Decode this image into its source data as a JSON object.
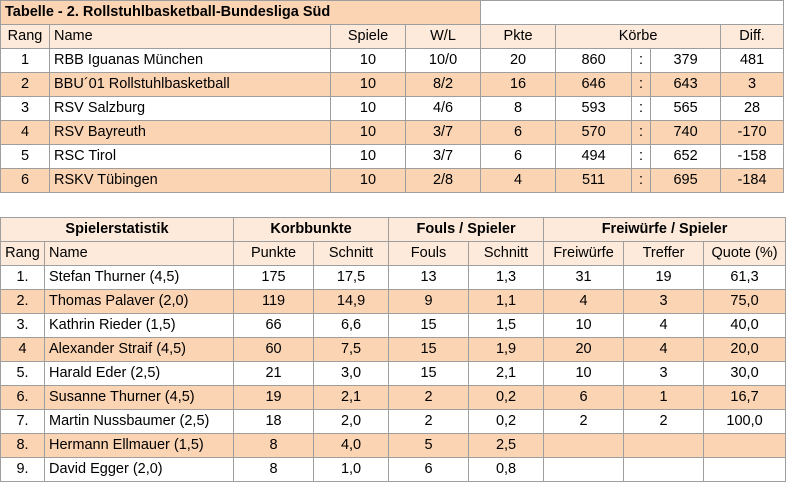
{
  "league_table": {
    "title": "Tabelle - 2. Rollstuhlbasketball-Bundesliga Süd",
    "headers": {
      "rang": "Rang",
      "name": "Name",
      "spiele": "Spiele",
      "wl": "W/L",
      "pkte": "Pkte",
      "koerbe": "Körbe",
      "diff": "Diff."
    },
    "separator": ":",
    "rows": [
      {
        "rang": "1",
        "name": "RBB Iguanas München",
        "spiele": "10",
        "wl": "10/0",
        "pkte": "20",
        "k1": "860",
        "k2": "379",
        "diff": "481"
      },
      {
        "rang": "2",
        "name": "BBU´01 Rollstuhlbasketball",
        "spiele": "10",
        "wl": "8/2",
        "pkte": "16",
        "k1": "646",
        "k2": "643",
        "diff": "3"
      },
      {
        "rang": "3",
        "name": "RSV Salzburg",
        "spiele": "10",
        "wl": "4/6",
        "pkte": "8",
        "k1": "593",
        "k2": "565",
        "diff": "28"
      },
      {
        "rang": "4",
        "name": "RSV Bayreuth",
        "spiele": "10",
        "wl": "3/7",
        "pkte": "6",
        "k1": "570",
        "k2": "740",
        "diff": "-170"
      },
      {
        "rang": "5",
        "name": "RSC Tirol",
        "spiele": "10",
        "wl": "3/7",
        "pkte": "6",
        "k1": "494",
        "k2": "652",
        "diff": "-158"
      },
      {
        "rang": "6",
        "name": "RSKV Tübingen",
        "spiele": "10",
        "wl": "2/8",
        "pkte": "4",
        "k1": "511",
        "k2": "695",
        "diff": "-184"
      }
    ]
  },
  "player_stats": {
    "group_headers": {
      "spielerstatistik": "Spielerstatistik",
      "korbpunkte": "Korbbunkte",
      "fouls": "Fouls / Spieler",
      "freiwuerfe": "Freiwürfe / Spieler"
    },
    "headers": {
      "rang": "Rang",
      "name": "Name",
      "punkte": "Punkte",
      "schnitt": "Schnitt",
      "fouls": "Fouls",
      "fouls_schnitt": "Schnitt",
      "freiwuerfe": "Freiwürfe",
      "treffer": "Treffer",
      "quote": "Quote (%)"
    },
    "rows": [
      {
        "rang": "1.",
        "name": "Stefan Thurner (4,5)",
        "punkte": "175",
        "schnitt": "17,5",
        "fouls": "13",
        "fouls_schnitt": "1,3",
        "freiwuerfe": "31",
        "treffer": "19",
        "quote": "61,3"
      },
      {
        "rang": "2.",
        "name": "Thomas Palaver (2,0)",
        "punkte": "119",
        "schnitt": "14,9",
        "fouls": "9",
        "fouls_schnitt": "1,1",
        "freiwuerfe": "4",
        "treffer": "3",
        "quote": "75,0"
      },
      {
        "rang": "3.",
        "name": "Kathrin Rieder (1,5)",
        "punkte": "66",
        "schnitt": "6,6",
        "fouls": "15",
        "fouls_schnitt": "1,5",
        "freiwuerfe": "10",
        "treffer": "4",
        "quote": "40,0"
      },
      {
        "rang": "4",
        "name": "Alexander Straif (4,5)",
        "punkte": "60",
        "schnitt": "7,5",
        "fouls": "15",
        "fouls_schnitt": "1,9",
        "freiwuerfe": "20",
        "treffer": "4",
        "quote": "20,0"
      },
      {
        "rang": "5.",
        "name": "Harald Eder (2,5)",
        "punkte": "21",
        "schnitt": "3,0",
        "fouls": "15",
        "fouls_schnitt": "2,1",
        "freiwuerfe": "10",
        "treffer": "3",
        "quote": "30,0"
      },
      {
        "rang": "6.",
        "name": "Susanne Thurner (4,5)",
        "punkte": "19",
        "schnitt": "2,1",
        "fouls": "2",
        "fouls_schnitt": "0,2",
        "freiwuerfe": "6",
        "treffer": "1",
        "quote": "16,7"
      },
      {
        "rang": "7.",
        "name": "Martin Nussbaumer (2,5)",
        "punkte": "18",
        "schnitt": "2,0",
        "fouls": "2",
        "fouls_schnitt": "0,2",
        "freiwuerfe": "2",
        "treffer": "2",
        "quote": "100,0"
      },
      {
        "rang": "8.",
        "name": "Hermann Ellmauer (1,5)",
        "punkte": "8",
        "schnitt": "4,0",
        "fouls": "5",
        "fouls_schnitt": "2,5",
        "freiwuerfe": "",
        "treffer": "",
        "quote": ""
      },
      {
        "rang": "9.",
        "name": "David Egger (2,0)",
        "punkte": "8",
        "schnitt": "1,0",
        "fouls": "6",
        "fouls_schnitt": "0,8",
        "freiwuerfe": "",
        "treffer": "",
        "quote": ""
      }
    ]
  },
  "colors": {
    "peach": "#fbd4b4",
    "cream": "#fdeada",
    "white": "#ffffff",
    "grid": "#9e9e9e"
  }
}
